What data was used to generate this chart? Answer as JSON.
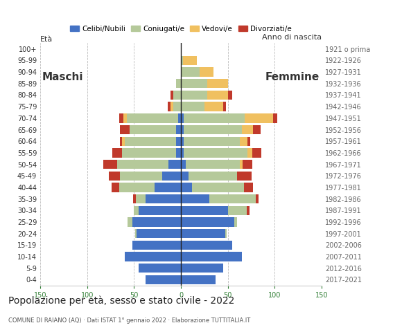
{
  "age_groups": [
    "0-4",
    "5-9",
    "10-14",
    "15-19",
    "20-24",
    "25-29",
    "30-34",
    "35-39",
    "40-44",
    "45-49",
    "50-54",
    "55-59",
    "60-64",
    "65-69",
    "70-74",
    "75-79",
    "80-84",
    "85-89",
    "90-94",
    "95-99",
    "100+"
  ],
  "birth_years": [
    "2017-2021",
    "2012-2016",
    "2007-2011",
    "2002-2006",
    "1997-2001",
    "1992-1996",
    "1987-1991",
    "1982-1986",
    "1977-1981",
    "1972-1976",
    "1967-1971",
    "1962-1966",
    "1957-1961",
    "1952-1956",
    "1947-1951",
    "1942-1946",
    "1937-1941",
    "1932-1936",
    "1927-1931",
    "1922-1926",
    "1921 o prima"
  ],
  "male": {
    "celibi": [
      38,
      45,
      60,
      52,
      47,
      52,
      45,
      38,
      28,
      20,
      13,
      5,
      5,
      5,
      3,
      0,
      0,
      0,
      0,
      0,
      0
    ],
    "coniugati": [
      0,
      0,
      0,
      0,
      2,
      5,
      5,
      10,
      38,
      45,
      55,
      58,
      55,
      50,
      55,
      8,
      8,
      5,
      0,
      0,
      0
    ],
    "vedovi": [
      0,
      0,
      0,
      0,
      0,
      0,
      0,
      0,
      0,
      0,
      0,
      0,
      3,
      0,
      3,
      3,
      0,
      0,
      0,
      0,
      0
    ],
    "divorziati": [
      0,
      0,
      0,
      0,
      0,
      0,
      0,
      3,
      8,
      12,
      15,
      10,
      2,
      10,
      5,
      3,
      3,
      0,
      0,
      0,
      0
    ]
  },
  "female": {
    "celibi": [
      37,
      45,
      65,
      55,
      47,
      57,
      50,
      30,
      12,
      8,
      5,
      3,
      3,
      3,
      3,
      0,
      0,
      0,
      0,
      0,
      0
    ],
    "coniugati": [
      0,
      0,
      0,
      0,
      2,
      3,
      20,
      50,
      55,
      52,
      58,
      68,
      60,
      62,
      65,
      25,
      28,
      28,
      20,
      2,
      0
    ],
    "vedovi": [
      0,
      0,
      0,
      0,
      0,
      0,
      0,
      0,
      0,
      0,
      3,
      5,
      8,
      12,
      30,
      20,
      22,
      22,
      15,
      15,
      0
    ],
    "divorziati": [
      0,
      0,
      0,
      0,
      0,
      0,
      3,
      3,
      10,
      15,
      10,
      10,
      3,
      8,
      5,
      3,
      5,
      0,
      0,
      0,
      0
    ]
  },
  "colors": {
    "celibi": "#4472C4",
    "coniugati": "#b5c99a",
    "vedovi": "#f0c060",
    "divorziati": "#c0392b"
  },
  "legend_labels": [
    "Celibi/Nubili",
    "Coniugati/e",
    "Vedovi/e",
    "Divorziati/e"
  ],
  "title": "Popolazione per età, sesso e stato civile - 2022",
  "subtitle": "COMUNE DI RAIANO (AQ) · Dati ISTAT 1° gennaio 2022 · Elaborazione TUTTITALIA.IT",
  "xlabel_left": "Maschi",
  "xlabel_right": "Femmine",
  "ylabel_left": "Età",
  "ylabel_right": "Anno di nascita",
  "xlim": 150,
  "background": "#ffffff",
  "grid_color": "#bbbbbb"
}
